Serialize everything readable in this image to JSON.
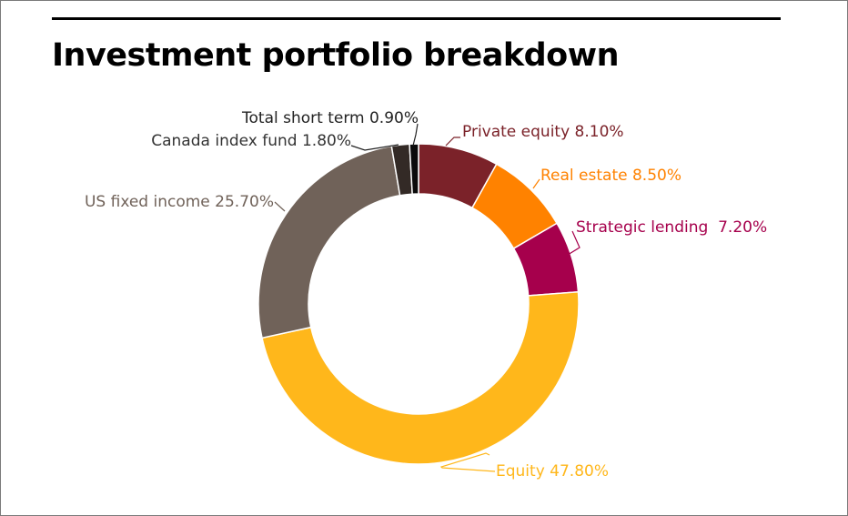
{
  "title": "Investment portfolio breakdown",
  "chart_data": {
    "type": "pie",
    "donut": true,
    "title": "Investment portfolio breakdown",
    "slices": [
      {
        "name": "Private equity",
        "value": 8.1,
        "label": "Private equity 8.10%",
        "color": "#7b2229"
      },
      {
        "name": "Real estate",
        "value": 8.5,
        "label": "Real estate 8.50%",
        "color": "#ff8200"
      },
      {
        "name": "Strategic lending",
        "value": 7.2,
        "label": "Strategic lending  7.20%",
        "color": "#a6004c"
      },
      {
        "name": "Equity",
        "value": 47.8,
        "label": "Equity 47.80%",
        "color": "#ffb71b"
      },
      {
        "name": "US fixed income",
        "value": 25.7,
        "label": "US fixed income 25.70%",
        "color": "#706259"
      },
      {
        "name": "Canada index fund",
        "value": 1.8,
        "label": "Canada index fund 1.80%",
        "color": "#332a26"
      },
      {
        "name": "Total short term",
        "value": 0.9,
        "label": "Total short term 0.90%",
        "color": "#0b0b0b"
      }
    ]
  }
}
